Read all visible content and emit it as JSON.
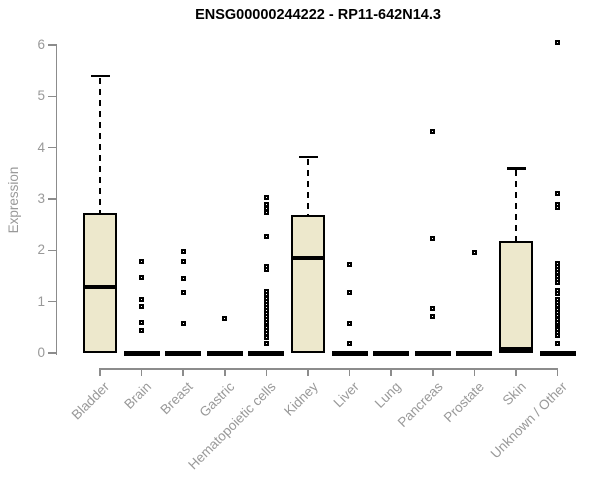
{
  "colors": {
    "box_fill": "#EDE8CC",
    "box_border": "#000000",
    "median": "#000000",
    "whisker": "#000000",
    "axis_line": "#8C8C8C",
    "axis_text": "#999999",
    "title_text": "#000000",
    "background": "#FFFFFF"
  },
  "chart_data": {
    "type": "boxplot",
    "title": "ENSG00000244222 - RP11-642N14.3",
    "ylabel": "Expression",
    "xlabel": "",
    "ylim": [
      0,
      6
    ],
    "yticks": [
      0,
      1,
      2,
      3,
      4,
      5,
      6
    ],
    "grid": false,
    "legend": false,
    "categories": [
      "Bladder",
      "Brain",
      "Breast",
      "Gastric",
      "Hematopoietic cells",
      "Kidney",
      "Liver",
      "Lung",
      "Pancreas",
      "Prostate",
      "Skin",
      "Unknown / Other"
    ],
    "boxes": [
      {
        "category": "Bladder",
        "q1": 0,
        "median": 1.29,
        "q3": 2.73,
        "whisker_low": 0,
        "whisker_high": 5.4,
        "outliers": []
      },
      {
        "category": "Brain",
        "q1": 0,
        "median": 0,
        "q3": 0,
        "whisker_low": 0,
        "whisker_high": 0,
        "outliers": [
          1.79,
          1.48,
          1.05,
          0.9,
          0.6,
          0.43
        ]
      },
      {
        "category": "Breast",
        "q1": 0,
        "median": 0,
        "q3": 0,
        "whisker_low": 0,
        "whisker_high": 0,
        "outliers": [
          1.97,
          1.79,
          1.46,
          1.17,
          0.58
        ]
      },
      {
        "category": "Gastric",
        "q1": 0,
        "median": 0,
        "q3": 0,
        "whisker_low": 0,
        "whisker_high": 0,
        "outliers": [
          0.68
        ]
      },
      {
        "category": "Hematopoietic cells",
        "q1": 0,
        "median": 0,
        "q3": 0,
        "whisker_low": 0,
        "whisker_high": 0,
        "outliers": [
          3.02,
          2.89,
          2.81,
          2.73,
          2.26,
          1.68,
          1.62,
          1.19,
          1.13,
          1.07,
          1.01,
          0.95,
          0.89,
          0.83,
          0.77,
          0.71,
          0.65,
          0.59,
          0.5,
          0.44,
          0.38,
          0.31,
          0.19
        ]
      },
      {
        "category": "Kidney",
        "q1": 0,
        "median": 1.85,
        "q3": 2.69,
        "whisker_low": 0,
        "whisker_high": 3.82,
        "outliers": []
      },
      {
        "category": "Liver",
        "q1": 0,
        "median": 0,
        "q3": 0,
        "whisker_low": 0,
        "whisker_high": 0,
        "outliers": [
          1.73,
          1.17,
          0.58,
          0.19
        ]
      },
      {
        "category": "Lung",
        "q1": 0,
        "median": 0,
        "q3": 0,
        "whisker_low": 0,
        "whisker_high": 0,
        "outliers": []
      },
      {
        "category": "Pancreas",
        "q1": 0,
        "median": 0,
        "q3": 0,
        "whisker_low": 0,
        "whisker_high": 0,
        "outliers": [
          4.31,
          2.24,
          0.86,
          0.72
        ]
      },
      {
        "category": "Prostate",
        "q1": 0,
        "median": 0,
        "q3": 0,
        "whisker_low": 0,
        "whisker_high": 0,
        "outliers": [
          1.95
        ]
      },
      {
        "category": "Skin",
        "q1": 0,
        "median": 0.06,
        "q3": 2.18,
        "whisker_low": 0,
        "whisker_high": 3.6,
        "outliers": []
      },
      {
        "category": "Unknown / Other",
        "q1": 0,
        "median": 0,
        "q3": 0,
        "whisker_low": 0,
        "whisker_high": 0,
        "outliers": [
          6.05,
          3.1,
          2.9,
          2.84,
          1.75,
          1.69,
          1.63,
          1.57,
          1.5,
          1.44,
          1.38,
          1.21,
          1.15,
          1.04,
          0.98,
          0.92,
          0.85,
          0.79,
          0.73,
          0.66,
          0.6,
          0.5,
          0.46,
          0.4,
          0.35,
          0.19
        ]
      }
    ]
  }
}
